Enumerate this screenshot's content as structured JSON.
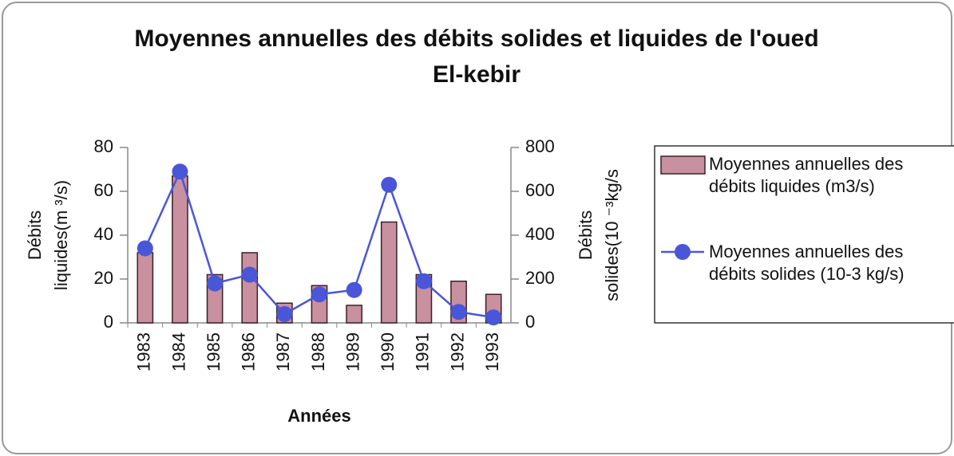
{
  "chart_data": {
    "type": "bar+line",
    "title": [
      "Moyennes annuelles des débits solides et liquides de l'oued",
      "El-kebir"
    ],
    "xlabel": "Années",
    "ylabel": [
      "Débits",
      "liquides(m ³/s)"
    ],
    "y2label": [
      "Débits",
      "solides(10 ⁻³kg/s"
    ],
    "categories": [
      "1983",
      "1984",
      "1985",
      "1986",
      "1987",
      "1988",
      "1989",
      "1990",
      "1991",
      "1992",
      "1993"
    ],
    "series": [
      {
        "name": "Moyennes annuelles des débits  liquides (m3/s)",
        "type": "bar",
        "color": "#c9909f",
        "values": [
          32,
          67,
          22,
          32,
          9,
          17,
          8,
          46,
          22,
          19,
          13
        ]
      },
      {
        "name": "Moyennes annuelles des débits solides    (10-3 kg/s)",
        "type": "line",
        "axis": "y2",
        "color": "#4a56d8",
        "values": [
          340,
          690,
          180,
          220,
          40,
          130,
          150,
          630,
          190,
          50,
          25
        ]
      }
    ],
    "ylim": [
      0,
      80
    ],
    "yticks": [
      0,
      20,
      40,
      60,
      80
    ],
    "y2lim": [
      0,
      800
    ],
    "y2ticks": [
      0,
      200,
      400,
      600,
      800
    ],
    "legend": "right"
  }
}
